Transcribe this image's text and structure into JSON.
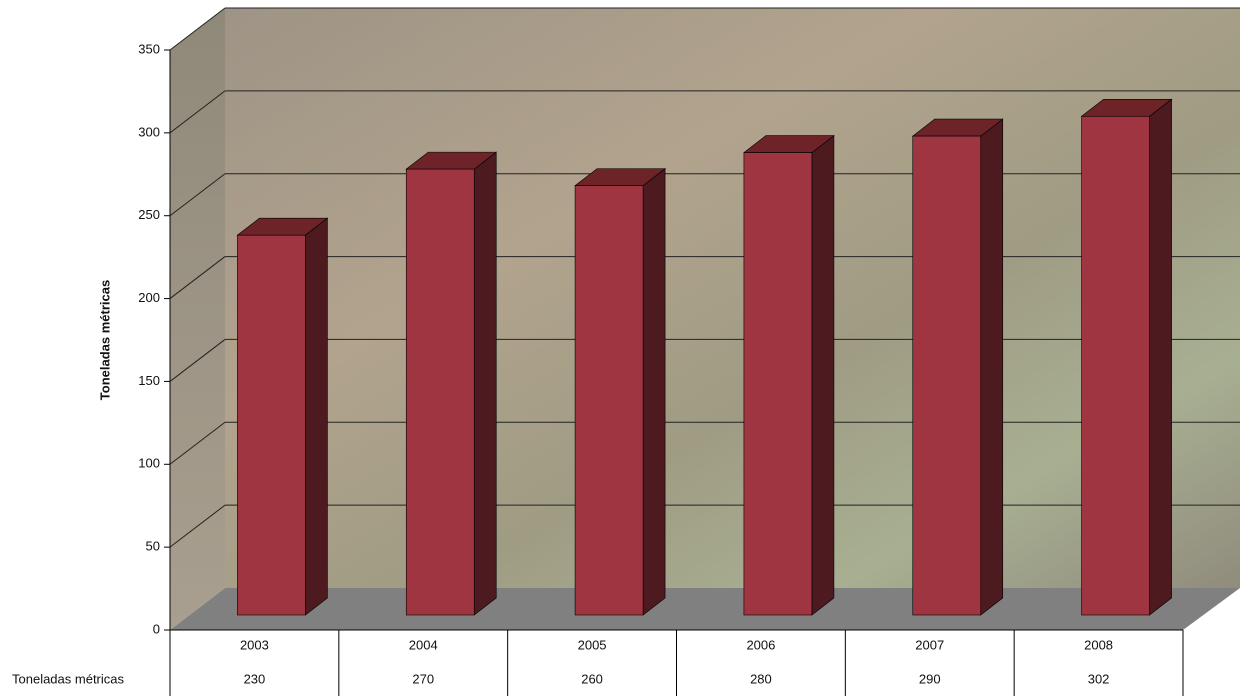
{
  "chart_data": {
    "type": "bar3d",
    "ylabel": "Toneladas métricas",
    "categories": [
      "2003",
      "2004",
      "2005",
      "2006",
      "2007",
      "2008"
    ],
    "series": [
      {
        "name": "Toneladas métricas",
        "color": "#9e3540",
        "values": [
          230,
          270,
          260,
          280,
          290,
          302
        ]
      }
    ],
    "ylim": [
      0,
      350
    ],
    "yticks": [
      0,
      50,
      100,
      150,
      200,
      250,
      300,
      350
    ],
    "grid": true
  }
}
